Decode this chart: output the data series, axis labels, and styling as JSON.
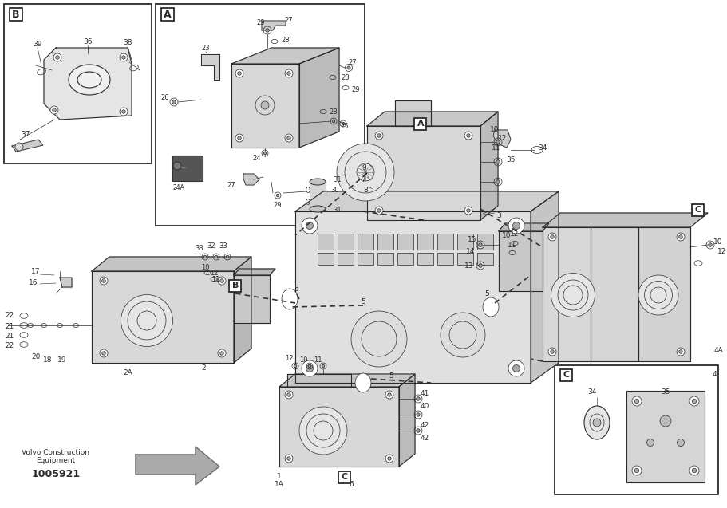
{
  "bg_color": "#ffffff",
  "line_color": "#2a2a2a",
  "brand_line1": "Volvo Construction",
  "brand_line2": "Equipment",
  "part_number": "1005921",
  "fig_width": 9.12,
  "fig_height": 6.37,
  "dpi": 100
}
